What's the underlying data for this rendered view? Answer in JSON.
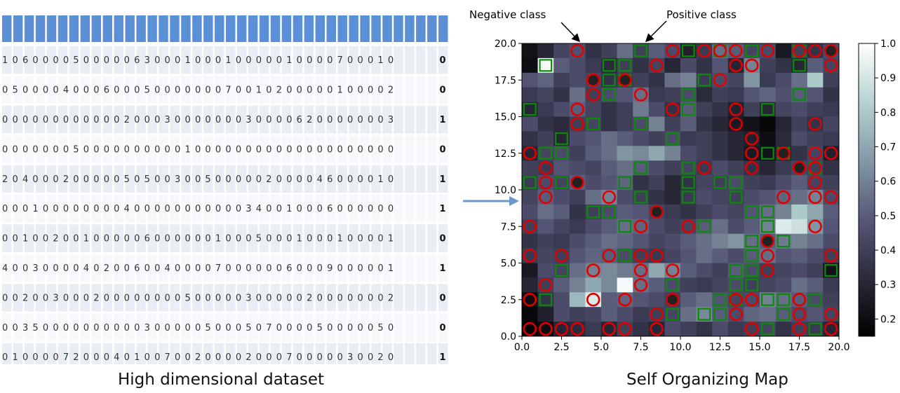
{
  "captions": {
    "left": "High dimensional dataset",
    "right": "Self Organizing Map"
  },
  "annotations": {
    "negative": "Negative class",
    "positive": "Positive class"
  },
  "colors": {
    "header_cell": "#5b8fd6",
    "row_even": "#e9edf4",
    "row_odd": "#f7f8fb",
    "arrow": "#6c97c9",
    "negative_marker": "#e00000",
    "positive_marker": "#0a8a0a"
  },
  "dataset": {
    "rows": [
      {
        "features": "106000050000063000100010000010000700010",
        "label": "0"
      },
      {
        "features": "050000400060005000000070010200000100002",
        "label": "0"
      },
      {
        "features": "000000000000200030000000300006200000003",
        "label": "1"
      },
      {
        "features": "000000050000000000100000000000000000000",
        "label": "0"
      },
      {
        "features": "204000200000505003005000002000046000010",
        "label": "1"
      },
      {
        "features": "000100000000400000000000340010006000000",
        "label": "1"
      },
      {
        "features": "001002001000006000000100050001000100001",
        "label": "0"
      },
      {
        "features": "400300004020060040000700000060009000001",
        "label": "1"
      },
      {
        "features": "002003000200000000500000300000200000002",
        "label": "0"
      },
      {
        "features": "003500000000003000005000507000050000050",
        "label": "0"
      },
      {
        "features": "010000720004010070020000200070000030020",
        "label": "1"
      }
    ]
  },
  "chart_data": {
    "type": "heatmap",
    "title": "",
    "grid_size": 20,
    "xlim": [
      0,
      20
    ],
    "ylim": [
      0,
      20
    ],
    "xticks": [
      "0.0",
      "2.5",
      "5.0",
      "7.5",
      "10.0",
      "12.5",
      "15.0",
      "17.5",
      "20.0"
    ],
    "yticks": [
      "0.0",
      "2.5",
      "5.0",
      "7.5",
      "10.0",
      "12.5",
      "15.0",
      "17.5",
      "20.0"
    ],
    "colorbar": {
      "colormap": "bone",
      "range": [
        0.15,
        1.0
      ],
      "ticks": [
        "0.2",
        "0.3",
        "0.4",
        "0.5",
        "0.6",
        "0.7",
        "0.8",
        "0.9",
        "1.0"
      ]
    },
    "values": [
      [
        0.22,
        0.3,
        0.42,
        0.46,
        0.35,
        0.4,
        0.55,
        0.4,
        0.5,
        0.45,
        0.28,
        0.38,
        0.55,
        0.5,
        0.42,
        0.45,
        0.25,
        0.4,
        0.35,
        0.45
      ],
      [
        0.2,
        0.98,
        0.5,
        0.45,
        0.38,
        0.32,
        0.4,
        0.35,
        0.42,
        0.3,
        0.44,
        0.35,
        0.48,
        0.3,
        0.6,
        0.4,
        0.35,
        0.3,
        0.5,
        0.42
      ],
      [
        0.48,
        0.52,
        0.4,
        0.45,
        0.42,
        0.35,
        0.38,
        0.4,
        0.35,
        0.55,
        0.6,
        0.38,
        0.45,
        0.42,
        0.65,
        0.38,
        0.45,
        0.55,
        0.8,
        0.4
      ],
      [
        0.38,
        0.42,
        0.35,
        0.55,
        0.4,
        0.45,
        0.48,
        0.55,
        0.38,
        0.4,
        0.45,
        0.32,
        0.4,
        0.38,
        0.48,
        0.52,
        0.46,
        0.5,
        0.48,
        0.35
      ],
      [
        0.3,
        0.38,
        0.45,
        0.5,
        0.42,
        0.35,
        0.4,
        0.58,
        0.45,
        0.35,
        0.5,
        0.4,
        0.35,
        0.28,
        0.4,
        0.3,
        0.42,
        0.45,
        0.4,
        0.38
      ],
      [
        0.45,
        0.35,
        0.32,
        0.4,
        0.42,
        0.35,
        0.4,
        0.45,
        0.6,
        0.4,
        0.5,
        0.35,
        0.3,
        0.25,
        0.22,
        0.18,
        0.3,
        0.4,
        0.35,
        0.42
      ],
      [
        0.35,
        0.4,
        0.3,
        0.45,
        0.48,
        0.55,
        0.5,
        0.45,
        0.4,
        0.45,
        0.38,
        0.4,
        0.35,
        0.3,
        0.28,
        0.2,
        0.32,
        0.45,
        0.4,
        0.38
      ],
      [
        0.3,
        0.42,
        0.45,
        0.4,
        0.5,
        0.55,
        0.65,
        0.62,
        0.7,
        0.6,
        0.45,
        0.4,
        0.35,
        0.3,
        0.25,
        0.22,
        0.3,
        0.35,
        0.42,
        0.28
      ],
      [
        0.4,
        0.38,
        0.48,
        0.45,
        0.42,
        0.5,
        0.55,
        0.5,
        0.45,
        0.4,
        0.42,
        0.38,
        0.45,
        0.4,
        0.35,
        0.3,
        0.38,
        0.42,
        0.4,
        0.35
      ],
      [
        0.38,
        0.45,
        0.42,
        0.5,
        0.45,
        0.48,
        0.52,
        0.35,
        0.4,
        0.3,
        0.35,
        0.42,
        0.4,
        0.45,
        0.4,
        0.38,
        0.45,
        0.5,
        0.42,
        0.4
      ],
      [
        0.42,
        0.5,
        0.45,
        0.4,
        0.55,
        0.6,
        0.45,
        0.4,
        0.35,
        0.3,
        0.38,
        0.45,
        0.42,
        0.4,
        0.45,
        0.48,
        0.52,
        0.55,
        0.6,
        0.45
      ],
      [
        0.45,
        0.55,
        0.5,
        0.35,
        0.4,
        0.45,
        0.5,
        0.48,
        0.42,
        0.38,
        0.35,
        0.4,
        0.45,
        0.42,
        0.48,
        0.55,
        0.6,
        0.8,
        0.7,
        0.5
      ],
      [
        0.4,
        0.48,
        0.42,
        0.38,
        0.45,
        0.5,
        0.55,
        0.52,
        0.45,
        0.4,
        0.42,
        0.5,
        0.55,
        0.45,
        0.5,
        0.6,
        0.92,
        0.88,
        0.65,
        0.48
      ],
      [
        0.35,
        0.4,
        0.38,
        0.45,
        0.5,
        0.55,
        0.52,
        0.48,
        0.42,
        0.45,
        0.5,
        0.55,
        0.6,
        0.65,
        0.55,
        0.5,
        0.58,
        0.6,
        0.55,
        0.45
      ],
      [
        0.38,
        0.42,
        0.4,
        0.48,
        0.52,
        0.5,
        0.45,
        0.4,
        0.38,
        0.42,
        0.48,
        0.55,
        0.5,
        0.45,
        0.5,
        0.55,
        0.48,
        0.5,
        0.45,
        0.4
      ],
      [
        0.25,
        0.45,
        0.42,
        0.55,
        0.6,
        0.62,
        0.58,
        0.55,
        0.7,
        0.6,
        0.5,
        0.45,
        0.4,
        0.5,
        0.45,
        0.4,
        0.42,
        0.45,
        0.4,
        0.22
      ],
      [
        0.3,
        0.4,
        0.5,
        0.6,
        0.7,
        0.62,
        0.98,
        0.55,
        0.5,
        0.45,
        0.4,
        0.38,
        0.42,
        0.45,
        0.4,
        0.42,
        0.45,
        0.55,
        0.5,
        0.38
      ],
      [
        0.2,
        0.35,
        0.45,
        0.75,
        0.92,
        0.5,
        0.52,
        0.48,
        0.45,
        0.4,
        0.5,
        0.55,
        0.48,
        0.42,
        0.45,
        0.6,
        0.55,
        0.5,
        0.45,
        0.4
      ],
      [
        0.18,
        0.28,
        0.45,
        0.4,
        0.42,
        0.5,
        0.45,
        0.38,
        0.4,
        0.42,
        0.55,
        0.62,
        0.5,
        0.45,
        0.52,
        0.55,
        0.5,
        0.45,
        0.48,
        0.42
      ],
      [
        0.12,
        0.2,
        0.3,
        0.32,
        0.38,
        0.3,
        0.4,
        0.35,
        0.3,
        0.45,
        0.4,
        0.35,
        0.45,
        0.38,
        0.4,
        0.42,
        0.35,
        0.4,
        0.38,
        0.3
      ]
    ],
    "negative_class_cells": [
      [
        0,
        0
      ],
      [
        1,
        0
      ],
      [
        2,
        0
      ],
      [
        3,
        0
      ],
      [
        5,
        0
      ],
      [
        6,
        0
      ],
      [
        8,
        0
      ],
      [
        14,
        0
      ],
      [
        17,
        0
      ],
      [
        19,
        0
      ],
      [
        8,
        1
      ],
      [
        13,
        1
      ],
      [
        17,
        1
      ],
      [
        19,
        1
      ],
      [
        0,
        2
      ],
      [
        4,
        2
      ],
      [
        6,
        2
      ],
      [
        9,
        2
      ],
      [
        13,
        2
      ],
      [
        14,
        2
      ],
      [
        17,
        2
      ],
      [
        1,
        3
      ],
      [
        7,
        3
      ],
      [
        4,
        4
      ],
      [
        7,
        4
      ],
      [
        9,
        4
      ],
      [
        15,
        4
      ],
      [
        0,
        5
      ],
      [
        2,
        5
      ],
      [
        5,
        5
      ],
      [
        7,
        5
      ],
      [
        8,
        5
      ],
      [
        15,
        5
      ],
      [
        19,
        5
      ],
      [
        15,
        6
      ],
      [
        0,
        7
      ],
      [
        7,
        7
      ],
      [
        10,
        7
      ],
      [
        18,
        7
      ],
      [
        8,
        8
      ],
      [
        1,
        9
      ],
      [
        5,
        9
      ],
      [
        16,
        9
      ],
      [
        18,
        9
      ],
      [
        19,
        9
      ],
      [
        1,
        10
      ],
      [
        3,
        10
      ],
      [
        18,
        10
      ],
      [
        1,
        11
      ],
      [
        11,
        11
      ],
      [
        14,
        11
      ],
      [
        17,
        11
      ],
      [
        18,
        11
      ],
      [
        0,
        12
      ],
      [
        14,
        12
      ],
      [
        16,
        12
      ],
      [
        18,
        12
      ],
      [
        19,
        12
      ],
      [
        14,
        13
      ],
      [
        3,
        14
      ],
      [
        13,
        14
      ],
      [
        18,
        14
      ],
      [
        3,
        15
      ],
      [
        9,
        15
      ],
      [
        13,
        15
      ],
      [
        4,
        16
      ],
      [
        7,
        16
      ],
      [
        4,
        17
      ],
      [
        6,
        17
      ],
      [
        12,
        17
      ],
      [
        8,
        18
      ],
      [
        13,
        18
      ],
      [
        14,
        18
      ],
      [
        19,
        18
      ],
      [
        3,
        19
      ],
      [
        9,
        19
      ],
      [
        11,
        19
      ],
      [
        12,
        19
      ],
      [
        13,
        19
      ],
      [
        15,
        19
      ],
      [
        17,
        19
      ],
      [
        18,
        19
      ],
      [
        19,
        19
      ]
    ],
    "positive_class_cells": [
      [
        15,
        0
      ],
      [
        18,
        0
      ],
      [
        9,
        1
      ],
      [
        11,
        1
      ],
      [
        12,
        1
      ],
      [
        16,
        1
      ],
      [
        1,
        2
      ],
      [
        12,
        2
      ],
      [
        13,
        2
      ],
      [
        15,
        2
      ],
      [
        16,
        2
      ],
      [
        18,
        2
      ],
      [
        9,
        3
      ],
      [
        13,
        3
      ],
      [
        14,
        3
      ],
      [
        2,
        4
      ],
      [
        13,
        4
      ],
      [
        14,
        4
      ],
      [
        19,
        4
      ],
      [
        6,
        5
      ],
      [
        14,
        5
      ],
      [
        14,
        6
      ],
      [
        16,
        6
      ],
      [
        6,
        7
      ],
      [
        11,
        7
      ],
      [
        15,
        7
      ],
      [
        4,
        8
      ],
      [
        5,
        8
      ],
      [
        14,
        8
      ],
      [
        15,
        8
      ],
      [
        7,
        9
      ],
      [
        10,
        9
      ],
      [
        13,
        9
      ],
      [
        0,
        10
      ],
      [
        2,
        10
      ],
      [
        6,
        10
      ],
      [
        10,
        10
      ],
      [
        12,
        10
      ],
      [
        13,
        10
      ],
      [
        7,
        11
      ],
      [
        10,
        11
      ],
      [
        18,
        11
      ],
      [
        1,
        12
      ],
      [
        2,
        12
      ],
      [
        15,
        12
      ],
      [
        16,
        12
      ],
      [
        2,
        13
      ],
      [
        9,
        13
      ],
      [
        4,
        14
      ],
      [
        7,
        14
      ],
      [
        0,
        15
      ],
      [
        10,
        15
      ],
      [
        15,
        15
      ],
      [
        5,
        16
      ],
      [
        10,
        16
      ],
      [
        17,
        16
      ],
      [
        5,
        17
      ],
      [
        6,
        17
      ],
      [
        11,
        17
      ],
      [
        1,
        18
      ],
      [
        5,
        18
      ],
      [
        6,
        18
      ],
      [
        17,
        18
      ],
      [
        7,
        19
      ],
      [
        10,
        19
      ],
      [
        12,
        19
      ],
      [
        14,
        19
      ],
      [
        17,
        19
      ]
    ],
    "filled_markers": [
      [
        15,
        0
      ],
      [
        9,
        2
      ],
      [
        15,
        6
      ],
      [
        8,
        8
      ],
      [
        3,
        10
      ],
      [
        5,
        15
      ],
      [
        6,
        17
      ],
      [
        4,
        17
      ],
      [
        7,
        19
      ],
      [
        19,
        19
      ],
      [
        16,
        12
      ],
      [
        17,
        11
      ]
    ]
  }
}
